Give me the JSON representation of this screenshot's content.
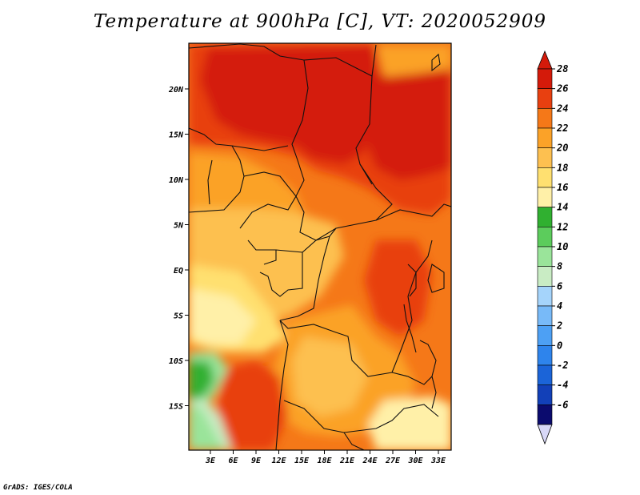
{
  "title": "Temperature at 900hPa [C], VT: 2020052909",
  "footer": "GrADS: IGES/COLA",
  "colors": {
    "levels": [
      "#0b0b6e",
      "#1240b8",
      "#1b64d8",
      "#2e84ec",
      "#4da0f4",
      "#78baf8",
      "#a5d4fb",
      "#c9ecc4",
      "#9ae49a",
      "#5ccc5c",
      "#30b030",
      "#fff0a8",
      "#ffe070",
      "#fdc050",
      "#fba228",
      "#f57818",
      "#e84010",
      "#d41a0a"
    ]
  },
  "colorbar": {
    "labels": [
      "28",
      "26",
      "24",
      "22",
      "20",
      "18",
      "16",
      "14",
      "12",
      "10",
      "8",
      "6",
      "4",
      "2",
      "0",
      "-2",
      "-4",
      "-6"
    ]
  },
  "axes": {
    "lon_labels": [
      "3E",
      "6E",
      "9E",
      "12E",
      "15E",
      "18E",
      "21E",
      "24E",
      "27E",
      "30E",
      "33E"
    ],
    "lat_labels": [
      "20N",
      "15N",
      "10N",
      "5N",
      "EQ",
      "5S",
      "10S",
      "15S"
    ]
  }
}
